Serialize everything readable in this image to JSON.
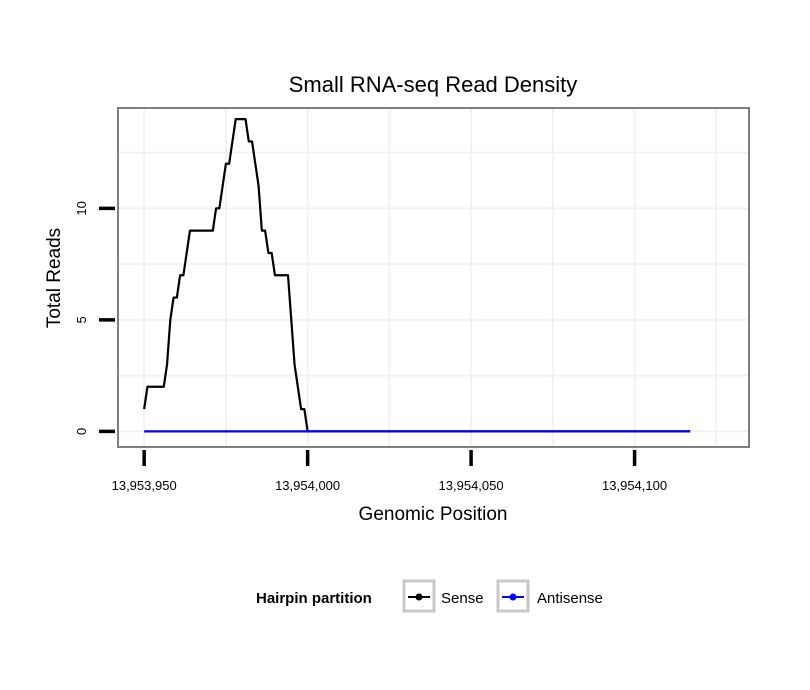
{
  "chart_data": {
    "type": "line",
    "title": "Small RNA-seq Read Density",
    "xlabel": "Genomic Position",
    "ylabel": "Total Reads",
    "xlim": [
      13953942,
      13954135
    ],
    "ylim": [
      -0.7,
      14.5
    ],
    "x_ticks": [
      13953950,
      13954000,
      13954050,
      13954100
    ],
    "x_tick_labels": [
      "13,953,950",
      "13,954,000",
      "13,954,050",
      "13,954,100"
    ],
    "y_ticks": [
      0,
      5,
      10
    ],
    "y_tick_labels": [
      "0",
      "5",
      "10"
    ],
    "grid": true,
    "legend": {
      "title": "Hairpin partition",
      "position": "bottom",
      "entries": [
        "Sense",
        "Antisense"
      ]
    },
    "colors": {
      "Sense": "#000000",
      "Antisense": "#0000ff",
      "panel_border": "#7f7f7f",
      "grid": "#f2f2f2"
    },
    "series": [
      {
        "name": "Sense",
        "x": [
          13953950,
          13953951,
          13953952,
          13953953,
          13953954,
          13953955,
          13953956,
          13953957,
          13953958,
          13953959,
          13953960,
          13953961,
          13953962,
          13953963,
          13953964,
          13953965,
          13953966,
          13953967,
          13953968,
          13953969,
          13953970,
          13953971,
          13953972,
          13953973,
          13953974,
          13953975,
          13953976,
          13953977,
          13953978,
          13953979,
          13953980,
          13953981,
          13953982,
          13953983,
          13953984,
          13953985,
          13953986,
          13953987,
          13953988,
          13953989,
          13953990,
          13953991,
          13953992,
          13953993,
          13953994,
          13953995,
          13953996,
          13953997,
          13953998,
          13953999,
          13954000,
          13954001,
          13954002,
          13954003,
          13954004,
          13954005,
          13954006,
          13954007,
          13954008,
          13954009,
          13954010,
          13954011,
          13954012,
          13954013,
          13954014,
          13954015,
          13954016,
          13954017,
          13954018,
          13954019,
          13954020,
          13954021,
          13954022,
          13954023,
          13954024,
          13954025,
          13954026,
          13954027,
          13954028,
          13954029,
          13954030,
          13954031,
          13954032,
          13954033,
          13954034,
          13954035,
          13954036,
          13954037,
          13954038,
          13954039,
          13954040,
          13954041,
          13954042,
          13954043,
          13954044,
          13954045,
          13954046,
          13954047,
          13954048,
          13954049,
          13954050,
          13954051,
          13954052,
          13954053,
          13954054,
          13954055,
          13954056,
          13954057,
          13954058,
          13954059,
          13954060,
          13954061,
          13954062,
          13954063,
          13954064,
          13954065,
          13954066,
          13954067,
          13954068,
          13954069,
          13954070,
          13954071,
          13954072,
          13954073,
          13954074,
          13954075,
          13954076,
          13954077,
          13954078,
          13954079,
          13954080,
          13954081,
          13954082,
          13954083,
          13954084,
          13954085,
          13954086,
          13954087,
          13954088,
          13954089,
          13954090,
          13954091,
          13954092,
          13954093,
          13954094,
          13954095,
          13954096,
          13954097,
          13954098,
          13954099,
          13954100,
          13954101,
          13954102,
          13954103,
          13954104,
          13954105,
          13954106,
          13954107,
          13954108,
          13954109,
          13954110,
          13954111,
          13954112,
          13954113,
          13954114,
          13954115,
          13954116,
          13954117
        ],
        "y": [
          1,
          2,
          2,
          2,
          2,
          2,
          2,
          3,
          5,
          6,
          6,
          7,
          7,
          8,
          9,
          9,
          9,
          9,
          9,
          9,
          9,
          9,
          10,
          10,
          11,
          12,
          12,
          13,
          14,
          14,
          14,
          14,
          13,
          13,
          12,
          11,
          9,
          9,
          8,
          8,
          7,
          7,
          7,
          7,
          7,
          5,
          3,
          2,
          1,
          1,
          0,
          0,
          0,
          0,
          0,
          0,
          0,
          0,
          0,
          0,
          0,
          0,
          0,
          0,
          0,
          0,
          0,
          0,
          0,
          0,
          0,
          0,
          0,
          0,
          0,
          0,
          0,
          0,
          0,
          0,
          0,
          0,
          0,
          0,
          0,
          0,
          0,
          0,
          0,
          0,
          0,
          0,
          0,
          0,
          0,
          0,
          0,
          0,
          0,
          0,
          0,
          0,
          0,
          0,
          0,
          0,
          0,
          0,
          0,
          0,
          0,
          0,
          0,
          0,
          0,
          0,
          0,
          0,
          0,
          0,
          0,
          0,
          0,
          0,
          0,
          0,
          0,
          0,
          0,
          0,
          0,
          0,
          0,
          0,
          0,
          0,
          0,
          0,
          0,
          0,
          0,
          0,
          0,
          0,
          0,
          0,
          0,
          0,
          0,
          0,
          0,
          0,
          0,
          0,
          0,
          0,
          0,
          0,
          0,
          0,
          0,
          0,
          0,
          0,
          0,
          0,
          0,
          0
        ]
      },
      {
        "name": "Antisense",
        "x": [
          13953950,
          13954117
        ],
        "y": [
          0,
          0
        ]
      }
    ]
  }
}
